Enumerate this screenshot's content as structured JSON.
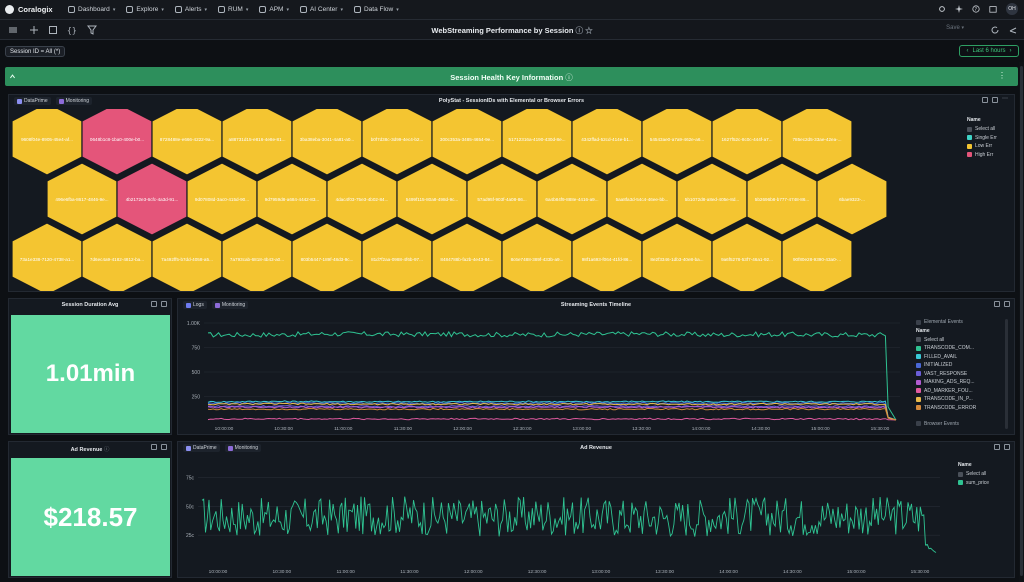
{
  "app": {
    "brand": "Coralogix",
    "avatar_initials": "OH"
  },
  "nav": [
    {
      "label": "Dashboard",
      "icon": "dashboard-icon"
    },
    {
      "label": "Explore",
      "icon": "chevron-down-icon"
    },
    {
      "label": "Alerts",
      "icon": "bell-icon"
    },
    {
      "label": "RUM",
      "icon": "rum-icon"
    },
    {
      "label": "APM",
      "icon": "apm-icon"
    },
    {
      "label": "AI Center",
      "icon": "ai-icon"
    },
    {
      "label": "Data Flow",
      "icon": "dataflow-icon"
    }
  ],
  "toolbar": {
    "title": "WebStreaming Performance by Session",
    "save_label": "Save"
  },
  "filter": {
    "chip_label": "Session ID = All (*)",
    "time_range": "Last 6 hours"
  },
  "section": {
    "title": "Session Health Key Information"
  },
  "polystat": {
    "title": "PolyStat - SessionIDs with Elemental or Browser Errors",
    "tags": [
      "DataPrime",
      "Monitoring"
    ],
    "legend_title": "Name",
    "legend": [
      {
        "label": "Select all",
        "color": "#4a5059"
      },
      {
        "label": "Single Err",
        "color": "#3fd3c6"
      },
      {
        "label": "Low Err",
        "color": "#f4c531"
      },
      {
        "label": "High Err",
        "color": "#e4557a"
      }
    ],
    "rows": [
      [
        "9608f04e-8905-45e4-af...",
        "0648b1c8-1ba0-400e-b0...",
        "8728488e-e666-4222-9a...",
        "a88731d15-e816-4e8e-81...",
        "3ba38eba-3041-4a81-a0...",
        "b0f7d38c-3d99-4ec4-b2...",
        "300c353a-3485-4654-9e...",
        "51712316a-4190-430d-8e...",
        "4342ffad-52cd-414e-b1...",
        "54543ae0-a7a9-462e-a6...",
        "1627f52c-8c0c-444f-a7...",
        "785ec2d5-33ae-42ea-..."
      ],
      [
        "496e6fba-8617-4846-9e...",
        "4b2172e3-6cfc-4a3d-91...",
        "9d07808d-3ac0-415d-90...",
        "9d7959d8-a684-4442-83...",
        "4dac4f03-75e3-4b02-84...",
        "5499f115-80a8-498d-9c...",
        "57ad95f-903f-4a08-86...",
        "6a4b84f9-888e-4416-a9...",
        "5aa8fa3d-54c4-46ee-bb...",
        "5b1072d8-a8ed-405e-8d...",
        "5b2696b8-b777-4748-86...",
        "6bae9323-..."
      ],
      [
        "73a1e338-7120-4738-a1...",
        "7d6ec4a9-4182-4812-ba...",
        "7a492ff5-b7dd-4058-a5...",
        "7a793cab-6818-4b43-a0...",
        "803b5447-189f-48d3-9c...",
        "81d7f2aa-0988-4f6b-97...",
        "8484788b-fa2b-4e43-84...",
        "8c6e7488-389f-433b-a9...",
        "98f1a693-f064-41fd-86...",
        "8e2f3346-1db3-40e8-ba...",
        "9a6f5278-53f7-46a1-92...",
        "90f80e28-9390-43a0-..."
      ]
    ],
    "status": [
      [
        "low",
        "high",
        "low",
        "low",
        "low",
        "low",
        "low",
        "low",
        "low",
        "low",
        "low",
        "low"
      ],
      [
        "low",
        "high",
        "low",
        "low",
        "low",
        "low",
        "low",
        "low",
        "low",
        "low",
        "low",
        "low"
      ],
      [
        "low",
        "low",
        "low",
        "low",
        "low",
        "low",
        "low",
        "low",
        "low",
        "low",
        "low",
        "low"
      ]
    ]
  },
  "session_duration": {
    "title": "Session Duration Avg",
    "value": "1.01min",
    "color": "#62d9a1"
  },
  "ad_revenue_stat": {
    "title": "Ad Revenue",
    "value": "$218.57",
    "color": "#62d9a1"
  },
  "timeline": {
    "title": "Streaming Events Timeline",
    "tags": [
      "Logs",
      "Monitoring"
    ],
    "legend_group": "Elemental Events",
    "legend_group2": "Browser Events",
    "legend_title": "Name",
    "legend": [
      {
        "label": "Select all",
        "color": "#4a5059"
      },
      {
        "label": "TRANSCODE_COM...",
        "color": "#2fc392"
      },
      {
        "label": "FILLED_AVAIL",
        "color": "#39c8d6"
      },
      {
        "label": "INITIALIZED",
        "color": "#4a68d6"
      },
      {
        "label": "VAST_RESPONSE",
        "color": "#6b5ed8"
      },
      {
        "label": "MAKING_ADS_REQ...",
        "color": "#b25bd1"
      },
      {
        "label": "AD_MARKER_FOU...",
        "color": "#e05aa0"
      },
      {
        "label": "TRANSCODE_IN_P...",
        "color": "#e8b94a"
      },
      {
        "label": "TRANSCODE_ERROR",
        "color": "#d58a3c"
      }
    ]
  },
  "ad_revenue_chart": {
    "title": "Ad Revenue",
    "tags": [
      "DataPrime",
      "Monitoring"
    ],
    "legend_title": "Name",
    "legend": [
      {
        "label": "Select all",
        "color": "#4a5059"
      },
      {
        "label": "sum_price",
        "color": "#2fc392"
      }
    ]
  },
  "chart_data": [
    {
      "type": "line",
      "title": "Streaming Events Timeline",
      "x": [
        "10:00:00",
        "10:30:00",
        "11:00:00",
        "11:30:00",
        "12:00:00",
        "12:30:00",
        "13:00:00",
        "13:30:00",
        "14:00:00",
        "14:30:00",
        "15:00:00",
        "15:30:00"
      ],
      "yticks": [
        "1.00K",
        "750",
        "500",
        "250"
      ],
      "ylim": [
        0,
        1000
      ],
      "series": [
        {
          "name": "TRANSCODE_COM...",
          "values": [
            880,
            880,
            890,
            885,
            885,
            880,
            885,
            890,
            880,
            885,
            880,
            880
          ]
        },
        {
          "name": "FILLED_AVAIL",
          "values": [
            195,
            200,
            198,
            196,
            197,
            199,
            195,
            200,
            196,
            198,
            197,
            200
          ]
        },
        {
          "name": "INITIALIZED",
          "values": [
            180,
            185,
            182,
            180,
            183,
            181,
            184,
            182,
            180,
            183,
            181,
            182
          ]
        },
        {
          "name": "VAST_RESPONSE",
          "values": [
            150,
            152,
            150,
            148,
            151,
            150,
            152,
            149,
            150,
            151,
            150,
            150
          ]
        },
        {
          "name": "MAKING_ADS_REQ...",
          "values": [
            140,
            142,
            140,
            141,
            139,
            140,
            142,
            140,
            141,
            140,
            139,
            140
          ]
        },
        {
          "name": "AD_MARKER_FOU...",
          "values": [
            20,
            22,
            21,
            20,
            22,
            21,
            20,
            22,
            21,
            20,
            21,
            20
          ]
        },
        {
          "name": "TRANSCODE_IN_P...",
          "values": [
            170,
            175,
            172,
            170,
            174,
            171,
            173,
            172,
            170,
            174,
            171,
            172
          ]
        },
        {
          "name": "TRANSCODE_ERROR",
          "values": [
            120,
            122,
            121,
            120,
            123,
            121,
            120,
            122,
            121,
            120,
            122,
            121
          ]
        }
      ]
    },
    {
      "type": "line",
      "title": "Ad Revenue",
      "x": [
        "10:00:00",
        "10:30:00",
        "11:00:00",
        "11:30:00",
        "12:00:00",
        "12:30:00",
        "13:00:00",
        "13:30:00",
        "14:00:00",
        "14:30:00",
        "15:00:00",
        "15:30:00"
      ],
      "yticks": [
        "75c",
        "50c",
        "25c"
      ],
      "ylim": [
        0,
        85
      ],
      "series": [
        {
          "name": "sum_price",
          "values": [
            42,
            40,
            41,
            43,
            40,
            42,
            41,
            40,
            42,
            41,
            42,
            41
          ]
        }
      ]
    }
  ]
}
